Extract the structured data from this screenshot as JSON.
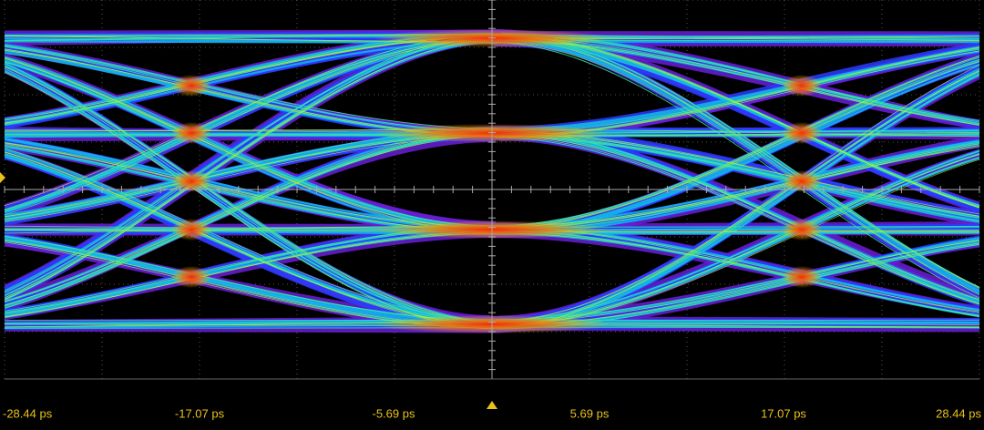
{
  "x_axis": {
    "labels": [
      "-28.44 ps",
      "-17.07 ps",
      "-5.69 ps",
      "5.69 ps",
      "17.07 ps",
      "28.44 ps"
    ]
  }
}
